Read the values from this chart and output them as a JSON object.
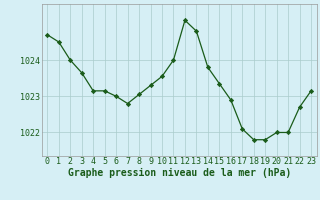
{
  "x": [
    0,
    1,
    2,
    3,
    4,
    5,
    6,
    7,
    8,
    9,
    10,
    11,
    12,
    13,
    14,
    15,
    16,
    17,
    18,
    19,
    20,
    21,
    22,
    23
  ],
  "y": [
    1024.7,
    1024.5,
    1024.0,
    1023.65,
    1023.15,
    1023.15,
    1023.0,
    1022.8,
    1023.05,
    1023.3,
    1023.55,
    1024.0,
    1025.1,
    1024.8,
    1023.8,
    1023.35,
    1022.9,
    1022.1,
    1021.8,
    1021.8,
    1022.0,
    1022.0,
    1022.7,
    1023.15
  ],
  "line_color": "#1a5c1a",
  "marker": "D",
  "marker_size": 2.2,
  "bg_color": "#d6eff5",
  "grid_color": "#aacccc",
  "xlabel": "Graphe pression niveau de la mer (hPa)",
  "xlabel_fontsize": 7,
  "tick_fontsize": 6,
  "yticks": [
    1022,
    1023,
    1024
  ],
  "ylim": [
    1021.35,
    1025.55
  ],
  "xlim": [
    -0.5,
    23.5
  ],
  "xticks": [
    0,
    1,
    2,
    3,
    4,
    5,
    6,
    7,
    8,
    9,
    10,
    11,
    12,
    13,
    14,
    15,
    16,
    17,
    18,
    19,
    20,
    21,
    22,
    23
  ]
}
